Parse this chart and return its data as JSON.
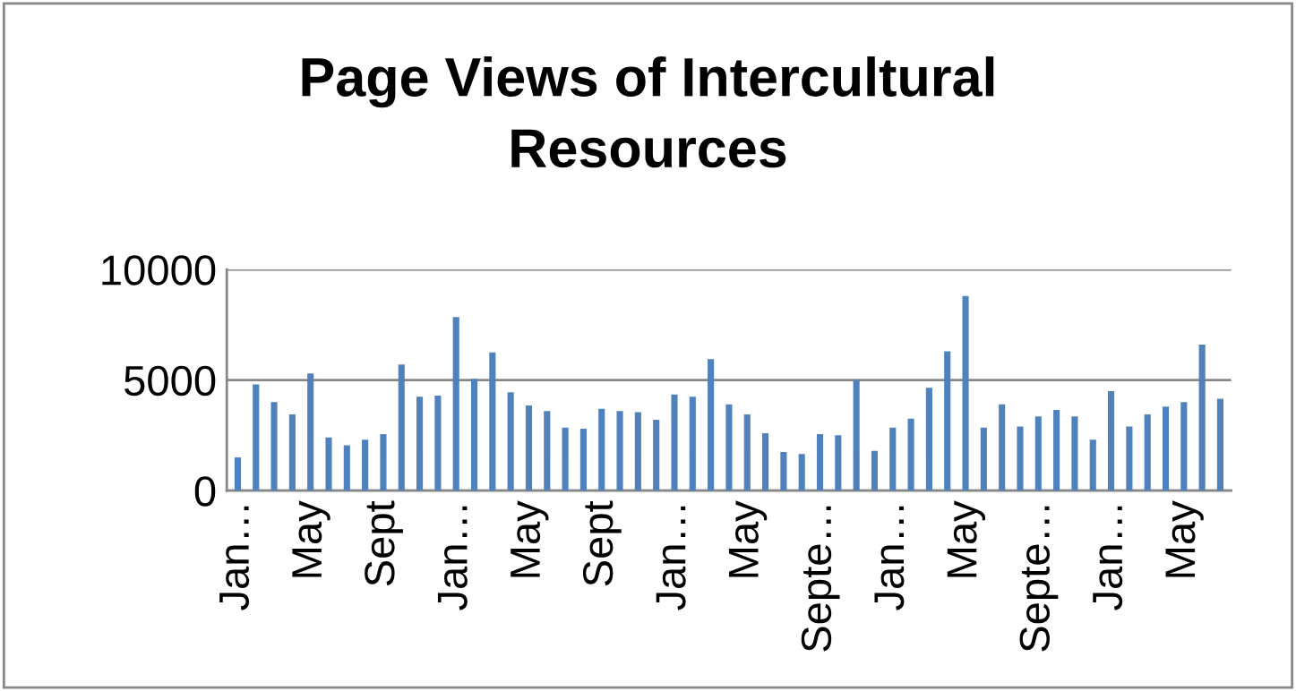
{
  "chart_data": {
    "type": "bar",
    "title": "Page Views of Intercultural\nResources",
    "categories": [
      "Jan…",
      null,
      null,
      null,
      "May",
      null,
      null,
      null,
      "Sept",
      null,
      null,
      null,
      "Jan…",
      null,
      null,
      null,
      "May",
      null,
      null,
      null,
      "Sept",
      null,
      null,
      null,
      "Jan…",
      null,
      null,
      null,
      "May",
      null,
      null,
      null,
      "Septe…",
      null,
      null,
      null,
      "Jan…",
      null,
      null,
      null,
      "May",
      null,
      null,
      null,
      "Septe…",
      null,
      null,
      null,
      "Jan…",
      null,
      null,
      null,
      "May",
      null,
      null
    ],
    "values": [
      1500,
      4800,
      4000,
      3450,
      5300,
      2400,
      2050,
      2300,
      2550,
      5700,
      4250,
      4300,
      7850,
      5050,
      6250,
      4450,
      3850,
      3600,
      2850,
      2800,
      3700,
      3600,
      3550,
      3200,
      4350,
      4250,
      5950,
      3900,
      3450,
      2600,
      1750,
      1650,
      2550,
      2500,
      5000,
      1800,
      2850,
      3250,
      4650,
      6300,
      8800,
      2850,
      3900,
      2900,
      3350,
      3650,
      3350,
      2300,
      4500,
      2900,
      3450,
      3800,
      4000,
      6600,
      4150
    ],
    "color": "#4f81bd",
    "ylim": [
      0,
      10000
    ],
    "yticks": [
      0,
      5000,
      10000
    ],
    "grid": "y"
  }
}
